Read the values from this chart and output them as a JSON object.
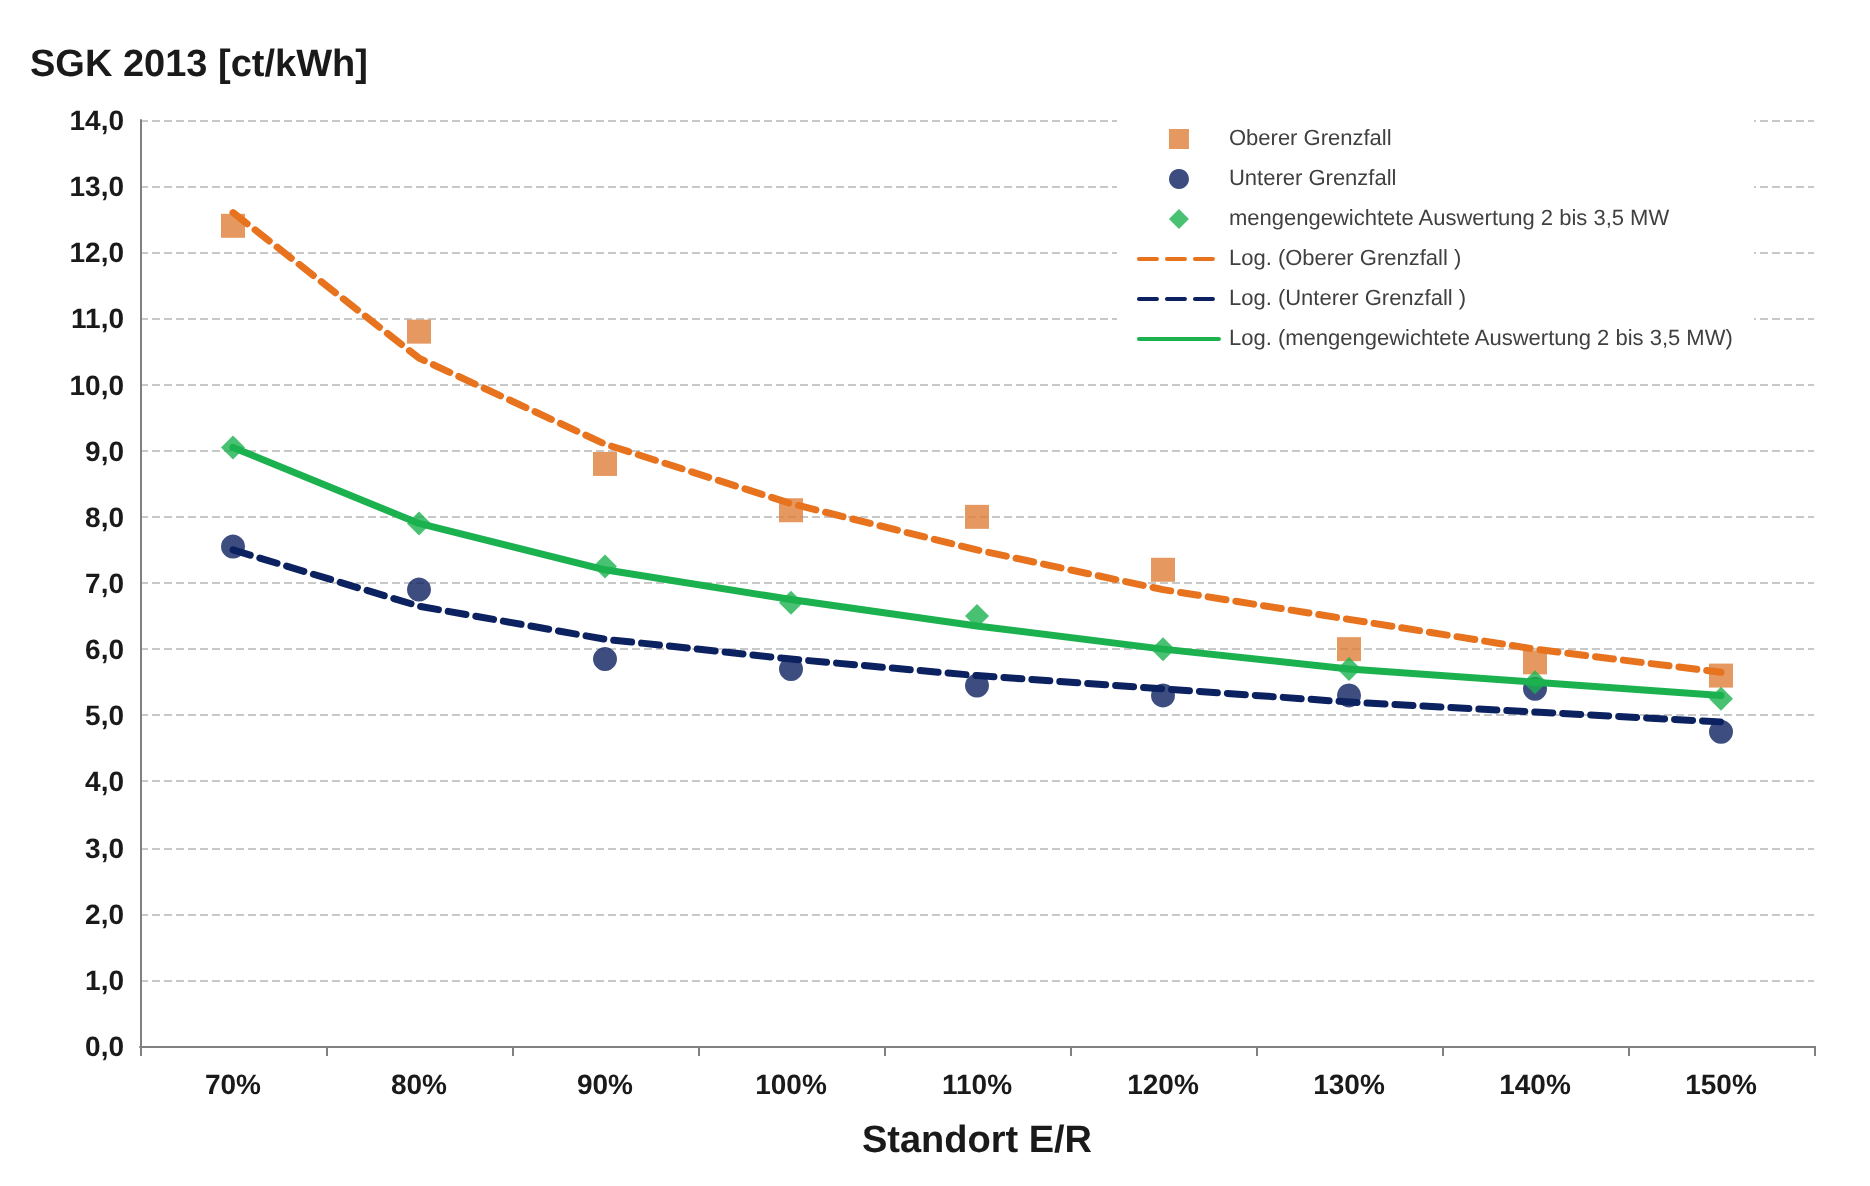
{
  "chart_data": {
    "type": "scatter",
    "ylabel": "SGK 2013 [ct/kWh]",
    "xlabel": "Standort E/R",
    "categories": [
      "70%",
      "80%",
      "90%",
      "100%",
      "110%",
      "120%",
      "130%",
      "140%",
      "150%"
    ],
    "ylim": [
      0,
      14
    ],
    "yticks": [
      {
        "value": 0,
        "label": "0,0"
      },
      {
        "value": 1,
        "label": "1,0"
      },
      {
        "value": 2,
        "label": "2,0"
      },
      {
        "value": 3,
        "label": "3,0"
      },
      {
        "value": 4,
        "label": "4,0"
      },
      {
        "value": 5,
        "label": "5,0"
      },
      {
        "value": 6,
        "label": "6,0"
      },
      {
        "value": 7,
        "label": "7,0"
      },
      {
        "value": 8,
        "label": "8,0"
      },
      {
        "value": 9,
        "label": "9,0"
      },
      {
        "value": 10,
        "label": "10,0"
      },
      {
        "value": 11,
        "label": "11,0"
      },
      {
        "value": 12,
        "label": "12,0"
      },
      {
        "value": 13,
        "label": "13,0"
      },
      {
        "value": 14,
        "label": "14,0"
      }
    ],
    "grid": "y",
    "legend": "top right",
    "series": [
      {
        "name": "Oberer Grenzfall",
        "marker": "square",
        "color": "#df7f3a",
        "values": [
          12.4,
          10.8,
          8.8,
          8.1,
          8.0,
          7.2,
          6.0,
          5.8,
          5.6
        ]
      },
      {
        "name": "Unterer Grenzfall",
        "marker": "circle",
        "color": "#0c2160",
        "values": [
          7.55,
          6.9,
          5.85,
          5.7,
          5.45,
          5.3,
          5.3,
          5.4,
          4.75
        ]
      },
      {
        "name": "mengengewichtete Auswertung 2 bis 3,5 MW",
        "marker": "diamond",
        "color": "#1bb14f",
        "values": [
          9.05,
          7.9,
          7.25,
          6.7,
          6.5,
          6.0,
          5.7,
          5.5,
          5.25
        ]
      },
      {
        "name": "Log. (Oberer Grenzfall )",
        "type": "line",
        "marker": "none",
        "line_style": "dashed",
        "color": "#e8731f",
        "values": [
          12.6,
          10.4,
          9.1,
          8.2,
          7.5,
          6.9,
          6.45,
          6.0,
          5.65
        ]
      },
      {
        "name": "Log. (Unterer Grenzfall )",
        "type": "line",
        "marker": "none",
        "line_style": "dashed",
        "color": "#0c2160",
        "values": [
          7.5,
          6.65,
          6.15,
          5.85,
          5.6,
          5.4,
          5.2,
          5.05,
          4.9
        ]
      },
      {
        "name": "Log. (mengengewichtete Auswertung 2 bis 3,5 MW)",
        "type": "line",
        "marker": "none",
        "line_style": "solid",
        "color": "#1bb14f",
        "values": [
          9.05,
          7.9,
          7.2,
          6.75,
          6.35,
          6.0,
          5.7,
          5.5,
          5.3
        ]
      }
    ]
  }
}
